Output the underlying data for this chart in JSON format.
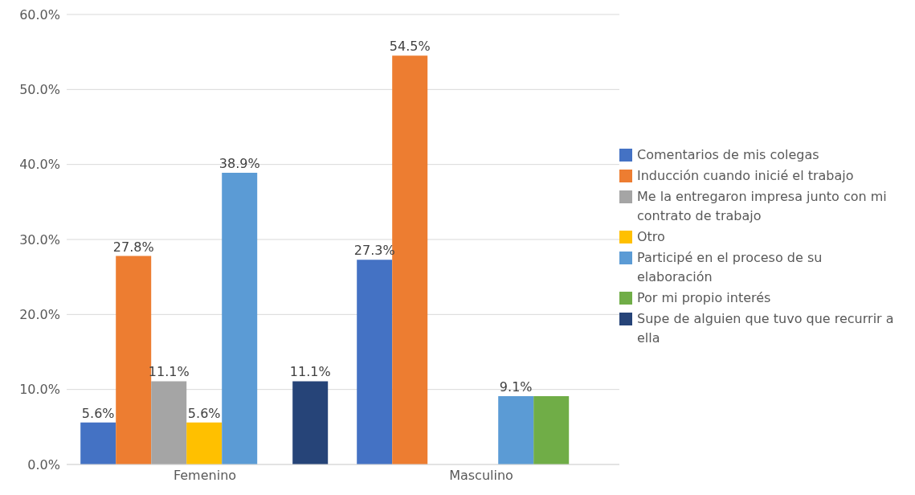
{
  "chart_data": {
    "type": "bar",
    "categories": [
      "Femenino",
      "Masculino"
    ],
    "series": [
      {
        "name": "Comentarios de mis colegas",
        "color": "#4472c4",
        "values": [
          5.6,
          27.3
        ],
        "value_labels": [
          "5.6%",
          "27.3%"
        ]
      },
      {
        "name": "Inducción cuando inicié el trabajo",
        "color": "#ed7d31",
        "values": [
          27.8,
          54.5
        ],
        "value_labels": [
          "27.8%",
          "54.5%"
        ]
      },
      {
        "name": "Me la entregaron impresa junto con mi contrato de trabajo",
        "color": "#a5a5a5",
        "values": [
          11.1,
          null
        ],
        "value_labels": [
          "11.1%",
          null
        ]
      },
      {
        "name": "Otro",
        "color": "#ffc000",
        "values": [
          5.6,
          null
        ],
        "value_labels": [
          "5.6%",
          null
        ]
      },
      {
        "name": "Participé en el proceso de su elaboración",
        "color": "#5b9bd5",
        "values": [
          38.9,
          9.1
        ],
        "value_labels": [
          "38.9%",
          "9.1%"
        ]
      },
      {
        "name": "Por mi propio interés",
        "color": "#70ad47",
        "values": [
          null,
          9.1
        ],
        "value_labels": [
          null,
          null
        ]
      },
      {
        "name": "Supe de alguien que tuvo que recurrir a ella",
        "color": "#264478",
        "values": [
          11.1,
          null
        ],
        "value_labels": [
          "11.1%",
          null
        ]
      }
    ],
    "ylim": [
      0,
      60
    ],
    "yticks": [
      {
        "value": 0,
        "label": "0.0%"
      },
      {
        "value": 10,
        "label": "10.0%"
      },
      {
        "value": 20,
        "label": "20.0%"
      },
      {
        "value": 30,
        "label": "30.0%"
      },
      {
        "value": 40,
        "label": "40.0%"
      },
      {
        "value": 50,
        "label": "50.0%"
      },
      {
        "value": 60,
        "label": "60.0%"
      }
    ],
    "grid": "y",
    "legend": "right"
  }
}
